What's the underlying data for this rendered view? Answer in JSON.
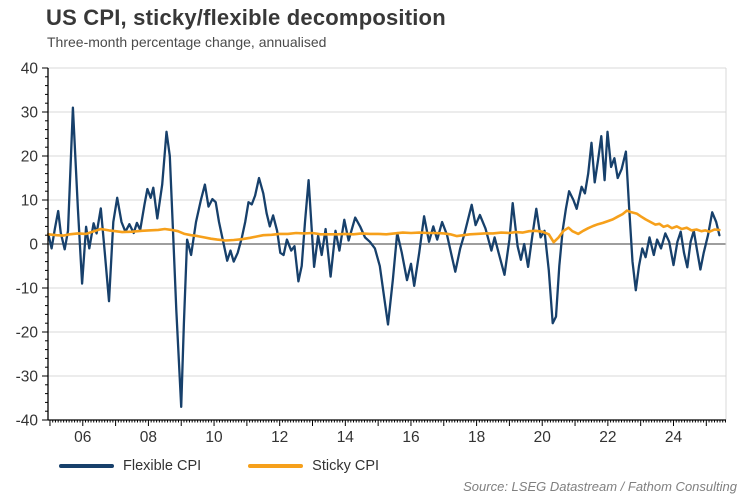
{
  "header": {
    "title": "US CPI, sticky/flexible decomposition",
    "subtitle": "Three-month percentage change, annualised"
  },
  "legend": {
    "items": [
      {
        "label": "Flexible CPI",
        "color": "#17406B"
      },
      {
        "label": "Sticky CPI",
        "color": "#F6A01B"
      }
    ]
  },
  "source": "Source: LSEG Datastream / Fathom Consulting",
  "chart_data": {
    "type": "line",
    "title": "US CPI, sticky/flexible decomposition",
    "subtitle": "Three-month percentage change, annualised",
    "xlabel": "",
    "ylabel": "",
    "xlim": [
      2004.94,
      2025.6
    ],
    "ylim": [
      -40,
      40
    ],
    "y_ticks": [
      40,
      30,
      20,
      10,
      0,
      -10,
      -20,
      -30,
      -40
    ],
    "y_minor_step": 2,
    "x_ticks": [
      {
        "year": 2006,
        "label": "06"
      },
      {
        "year": 2008,
        "label": "08"
      },
      {
        "year": 2010,
        "label": "10"
      },
      {
        "year": 2012,
        "label": "12"
      },
      {
        "year": 2014,
        "label": "14"
      },
      {
        "year": 2016,
        "label": "16"
      },
      {
        "year": 2018,
        "label": "18"
      },
      {
        "year": 2020,
        "label": "20"
      },
      {
        "year": 2022,
        "label": "22"
      },
      {
        "year": 2024,
        "label": "24"
      }
    ],
    "grid": "horizontal, light-gray, dark zero line",
    "legend_position": "bottom-left",
    "colors": {
      "grid": "#d9d9d9",
      "zero_line": "#7f7f7f",
      "axis": "#000000",
      "tick_text": "#333333"
    },
    "series": [
      {
        "name": "Flexible CPI",
        "color": "#17406B",
        "width": 2.3,
        "x": [
          2004.95,
          2005.05,
          2005.15,
          2005.25,
          2005.33,
          2005.45,
          2005.55,
          2005.7,
          2005.85,
          2005.98,
          2006.1,
          2006.2,
          2006.33,
          2006.42,
          2006.55,
          2006.67,
          2006.8,
          2006.93,
          2007.05,
          2007.18,
          2007.3,
          2007.42,
          2007.55,
          2007.65,
          2007.75,
          2007.88,
          2007.97,
          2008.07,
          2008.15,
          2008.27,
          2008.42,
          2008.55,
          2008.65,
          2008.75,
          2008.85,
          2009.0,
          2009.08,
          2009.18,
          2009.3,
          2009.45,
          2009.6,
          2009.72,
          2009.83,
          2009.95,
          2010.05,
          2010.15,
          2010.28,
          2010.4,
          2010.5,
          2010.6,
          2010.72,
          2010.85,
          2010.95,
          2011.05,
          2011.15,
          2011.25,
          2011.37,
          2011.5,
          2011.6,
          2011.7,
          2011.8,
          2011.92,
          2012.02,
          2012.12,
          2012.22,
          2012.35,
          2012.45,
          2012.57,
          2012.67,
          2012.77,
          2012.88,
          2013.05,
          2013.17,
          2013.28,
          2013.4,
          2013.55,
          2013.7,
          2013.82,
          2013.97,
          2014.1,
          2014.3,
          2014.45,
          2014.6,
          2014.75,
          2014.9,
          2015.05,
          2015.2,
          2015.3,
          2015.45,
          2015.58,
          2015.72,
          2015.88,
          2016.0,
          2016.1,
          2016.25,
          2016.4,
          2016.55,
          2016.68,
          2016.8,
          2016.95,
          2017.1,
          2017.22,
          2017.35,
          2017.5,
          2017.62,
          2017.72,
          2017.85,
          2017.97,
          2018.1,
          2018.27,
          2018.45,
          2018.55,
          2018.67,
          2018.85,
          2019.0,
          2019.1,
          2019.25,
          2019.35,
          2019.45,
          2019.57,
          2019.7,
          2019.82,
          2019.95,
          2020.07,
          2020.2,
          2020.32,
          2020.42,
          2020.52,
          2020.62,
          2020.72,
          2020.82,
          2020.95,
          2021.05,
          2021.2,
          2021.3,
          2021.4,
          2021.5,
          2021.6,
          2021.7,
          2021.8,
          2021.9,
          2021.99,
          2022.1,
          2022.2,
          2022.3,
          2022.42,
          2022.55,
          2022.65,
          2022.75,
          2022.85,
          2022.95,
          2023.05,
          2023.15,
          2023.27,
          2023.4,
          2023.5,
          2023.62,
          2023.75,
          2023.87,
          2024.0,
          2024.12,
          2024.22,
          2024.32,
          2024.42,
          2024.52,
          2024.62,
          2024.72,
          2024.82,
          2024.92,
          2025.05,
          2025.18,
          2025.3,
          2025.4
        ],
        "y": [
          2.3,
          -1,
          3.5,
          7.5,
          2.5,
          -1.2,
          3,
          31,
          8,
          -9,
          3.9,
          -1,
          4.7,
          2.4,
          8.1,
          -2,
          -13,
          5,
          10.5,
          5,
          2.8,
          4.5,
          2.5,
          4.8,
          3.2,
          9,
          12.5,
          10.5,
          12.8,
          5.8,
          13.5,
          25.5,
          20,
          3,
          -15,
          -37,
          -18,
          1,
          -2.5,
          5,
          10,
          13.5,
          8.5,
          10.2,
          9.5,
          5,
          0.5,
          -3.8,
          -1.5,
          -4,
          -2,
          1.5,
          5,
          9.5,
          9,
          11,
          15,
          11.5,
          7,
          4,
          6.5,
          3,
          -2,
          -2.5,
          1,
          -1.5,
          -0.5,
          -8.5,
          -5,
          5,
          14.5,
          -5.2,
          1.9,
          -2.5,
          3.4,
          -7.4,
          3,
          -1.5,
          5.5,
          0.8,
          6,
          4,
          1.5,
          0.5,
          -1,
          -5,
          -13,
          -18.3,
          -8,
          2.5,
          -2,
          -8.2,
          -4.5,
          -9.5,
          -2,
          6.3,
          0.5,
          4,
          1,
          5,
          2,
          -2,
          -6.3,
          -1,
          2,
          5,
          8.9,
          4.3,
          6.6,
          3.5,
          -1.5,
          1.5,
          -2,
          -7,
          1,
          9.3,
          -0.5,
          -3.6,
          0,
          -5.2,
          2,
          8,
          1.5,
          3,
          -6,
          -18,
          -16.5,
          -5,
          3,
          8,
          12,
          10,
          8,
          13,
          11.5,
          16,
          23,
          14,
          19,
          24.5,
          14.5,
          25.5,
          17.5,
          19.5,
          15,
          17,
          21,
          8,
          -4,
          -10.5,
          -5,
          -1,
          -3,
          1.5,
          -2.5,
          1,
          -1,
          2.4,
          0.5,
          -4.8,
          0.5,
          2.8,
          -2,
          -5.3,
          0.5,
          3,
          -1.5,
          -5.8,
          -2,
          2,
          7.2,
          5,
          2
        ]
      },
      {
        "name": "Sticky CPI",
        "color": "#F6A01B",
        "width": 2.6,
        "x": [
          2004.95,
          2005.2,
          2005.4,
          2005.6,
          2005.85,
          2006.1,
          2006.35,
          2006.55,
          2006.8,
          2007.0,
          2007.2,
          2007.5,
          2007.8,
          2008.0,
          2008.3,
          2008.5,
          2008.7,
          2008.9,
          2009.1,
          2009.3,
          2009.5,
          2009.7,
          2009.9,
          2010.1,
          2010.35,
          2010.6,
          2010.85,
          2011.1,
          2011.3,
          2011.5,
          2011.75,
          2012.0,
          2012.25,
          2012.5,
          2012.75,
          2013.0,
          2013.25,
          2013.5,
          2013.75,
          2014.0,
          2014.25,
          2014.5,
          2014.75,
          2015.0,
          2015.25,
          2015.5,
          2015.75,
          2016.0,
          2016.25,
          2016.5,
          2016.75,
          2017.0,
          2017.2,
          2017.4,
          2017.6,
          2017.8,
          2018.0,
          2018.25,
          2018.5,
          2018.75,
          2019.0,
          2019.2,
          2019.4,
          2019.6,
          2019.8,
          2020.0,
          2020.2,
          2020.35,
          2020.5,
          2020.65,
          2020.8,
          2020.92,
          2021.1,
          2021.25,
          2021.4,
          2021.55,
          2021.7,
          2021.85,
          2022.0,
          2022.15,
          2022.3,
          2022.45,
          2022.58,
          2022.72,
          2022.88,
          2023.0,
          2023.15,
          2023.3,
          2023.45,
          2023.57,
          2023.7,
          2023.82,
          2023.95,
          2024.1,
          2024.25,
          2024.4,
          2024.55,
          2024.7,
          2024.85,
          2024.97,
          2025.1,
          2025.25,
          2025.4
        ],
        "y": [
          2.2,
          2,
          1.9,
          2.2,
          2.4,
          2.3,
          2.9,
          3.4,
          3.1,
          2.9,
          2.7,
          2.8,
          3,
          3.1,
          3.2,
          3.4,
          3.2,
          2.9,
          2.3,
          2,
          1.8,
          1.5,
          1.2,
          1,
          0.8,
          0.9,
          1.1,
          1.4,
          1.7,
          2,
          2.1,
          2.3,
          2.3,
          2.5,
          2.4,
          2.5,
          2.2,
          2.2,
          2.2,
          2.3,
          2.2,
          2.4,
          2.3,
          2.3,
          2.2,
          2.4,
          2.6,
          2.5,
          2.6,
          2.5,
          2.5,
          2.4,
          2.2,
          1.8,
          2,
          2.2,
          2.3,
          2.4,
          2.4,
          2.6,
          2.5,
          2.7,
          2.6,
          2.9,
          3,
          2.8,
          2.2,
          0.4,
          1.5,
          3,
          3.7,
          2.9,
          2.3,
          3,
          3.6,
          4.1,
          4.5,
          4.8,
          5.2,
          5.6,
          6.2,
          6.8,
          7.6,
          7.2,
          6.9,
          6.3,
          5.6,
          5,
          4.4,
          4.6,
          3.9,
          4.2,
          3.6,
          4,
          3.4,
          3.7,
          3.1,
          3.3,
          2.9,
          3.1,
          2.8,
          3.3,
          3.2
        ]
      }
    ]
  }
}
